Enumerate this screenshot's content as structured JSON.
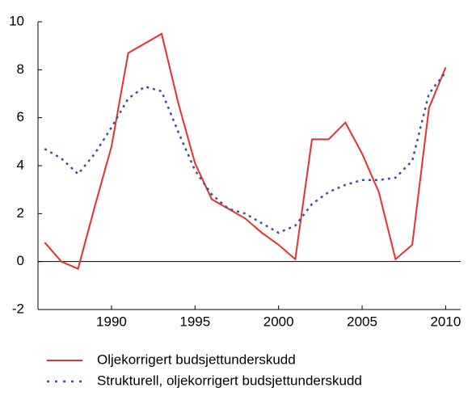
{
  "chart_data": {
    "type": "line",
    "x": [
      1986,
      1987,
      1988,
      1989,
      1990,
      1991,
      1992,
      1993,
      1994,
      1995,
      1996,
      1997,
      1998,
      1999,
      2000,
      2001,
      2002,
      2003,
      2004,
      2005,
      2006,
      2007,
      2008,
      2009,
      2010
    ],
    "series": [
      {
        "name": "Oljekorrigert budsjettunderskudd",
        "color": "#e8302c",
        "style": "solid",
        "values": [
          0.8,
          0,
          -0.3,
          2.3,
          4.8,
          8.7,
          9.1,
          9.5,
          6.6,
          4.1,
          2.6,
          2.2,
          1.8,
          1.2,
          0.7,
          0.1,
          5.1,
          5.1,
          5.8,
          4.5,
          2.9,
          0.1,
          0.7,
          6.4,
          8.1
        ]
      },
      {
        "name": "Strukturell, oljekorrigert budsjettunderskudd",
        "color": "#3b4fa8",
        "style": "dotted",
        "values": [
          4.7,
          4.3,
          3.65,
          4.5,
          5.6,
          6.8,
          7.3,
          7.1,
          5.4,
          3.8,
          2.8,
          2.2,
          2.0,
          1.6,
          1.2,
          1.5,
          2.4,
          2.9,
          3.2,
          3.4,
          3.4,
          3.5,
          4.2,
          7.0,
          7.9
        ]
      }
    ],
    "xlim": [
      1985.6,
      2010.9
    ],
    "xticks": [
      1990,
      1995,
      2000,
      2005,
      2010
    ],
    "ylim": [
      -2,
      10
    ],
    "yticks": [
      -2,
      0,
      2,
      4,
      6,
      8,
      10
    ]
  }
}
